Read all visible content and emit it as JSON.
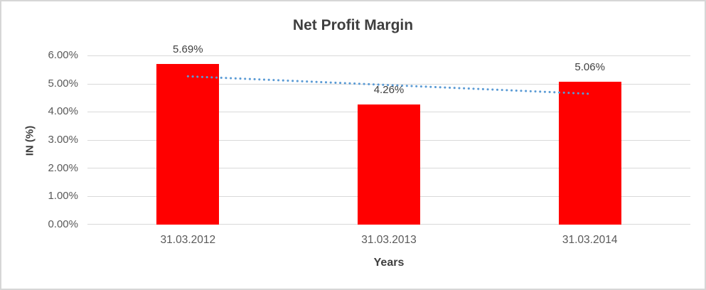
{
  "frame": {
    "background": "#FFFFFF",
    "border_color": "#D6D6D6"
  },
  "chart_data": {
    "type": "bar",
    "title": "Net Profit Margin",
    "xlabel": "Years",
    "ylabel": "IN (%)",
    "categories": [
      "31.03.2012",
      "31.03.2013",
      "31.03.2014"
    ],
    "values": [
      5.69,
      4.26,
      5.06
    ],
    "data_labels": [
      "5.69%",
      "4.26%",
      "5.06%"
    ],
    "ylim": [
      0,
      6
    ],
    "ytick_values": [
      0,
      1,
      2,
      3,
      4,
      5,
      6
    ],
    "ytick_labels": [
      "0.00%",
      "1.00%",
      "2.00%",
      "3.00%",
      "4.00%",
      "5.00%",
      "6.00%"
    ],
    "grid": true,
    "legend": "none",
    "colors": {
      "bar": "#FF0000",
      "trendline": "#5B9BD5",
      "gridline": "#D9D9D9",
      "title_text": "#3F3F3F",
      "tick_text": "#595959",
      "data_label_text": "#404040"
    },
    "trendline": {
      "type": "linear",
      "style": "dotted",
      "start_value": 5.26,
      "end_value": 4.64
    }
  }
}
